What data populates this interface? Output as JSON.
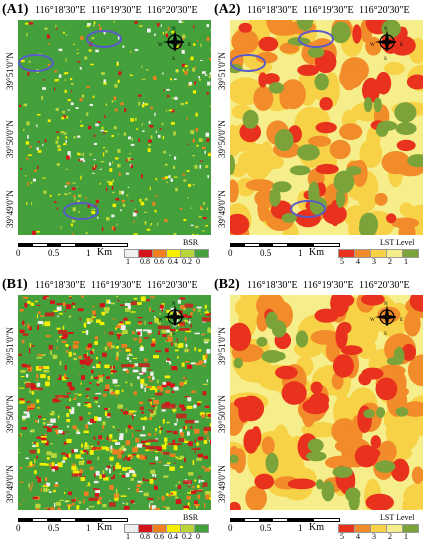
{
  "panels": [
    {
      "id": "A1",
      "label": "(A1)",
      "kind": "BSR"
    },
    {
      "id": "A2",
      "label": "(A2)",
      "kind": "LST"
    },
    {
      "id": "B1",
      "label": "(B1)",
      "kind": "BSR"
    },
    {
      "id": "B2",
      "label": "(B2)",
      "kind": "LST"
    }
  ],
  "longitudes": [
    "116°18'30\"E",
    "116°19'30\"E",
    "116°20'30\"E"
  ],
  "latitudes": [
    "39°51'0\"N",
    "39°50'0\"N",
    "39°49'0\"N"
  ],
  "scale": {
    "ticks": [
      "0",
      "0.5",
      "1"
    ],
    "unit": "Km"
  },
  "bsr_legend": {
    "title": "BSR",
    "values": [
      "1",
      "0.8",
      "0.6",
      "0.4",
      "0.2",
      "0"
    ],
    "colors": [
      "#f0f0f0",
      "#d4141a",
      "#f07f1f",
      "#f6f000",
      "#b8d63a",
      "#43a03a"
    ]
  },
  "lst_legend": {
    "title": "LST Level",
    "values": [
      "5",
      "4",
      "3",
      "2",
      "1"
    ],
    "colors": [
      "#e8321e",
      "#f28b2a",
      "#f7d246",
      "#f5ee8a",
      "#7ba33a"
    ]
  },
  "compass": {
    "north": "N",
    "south": "S",
    "east": "E",
    "west": "W"
  }
}
